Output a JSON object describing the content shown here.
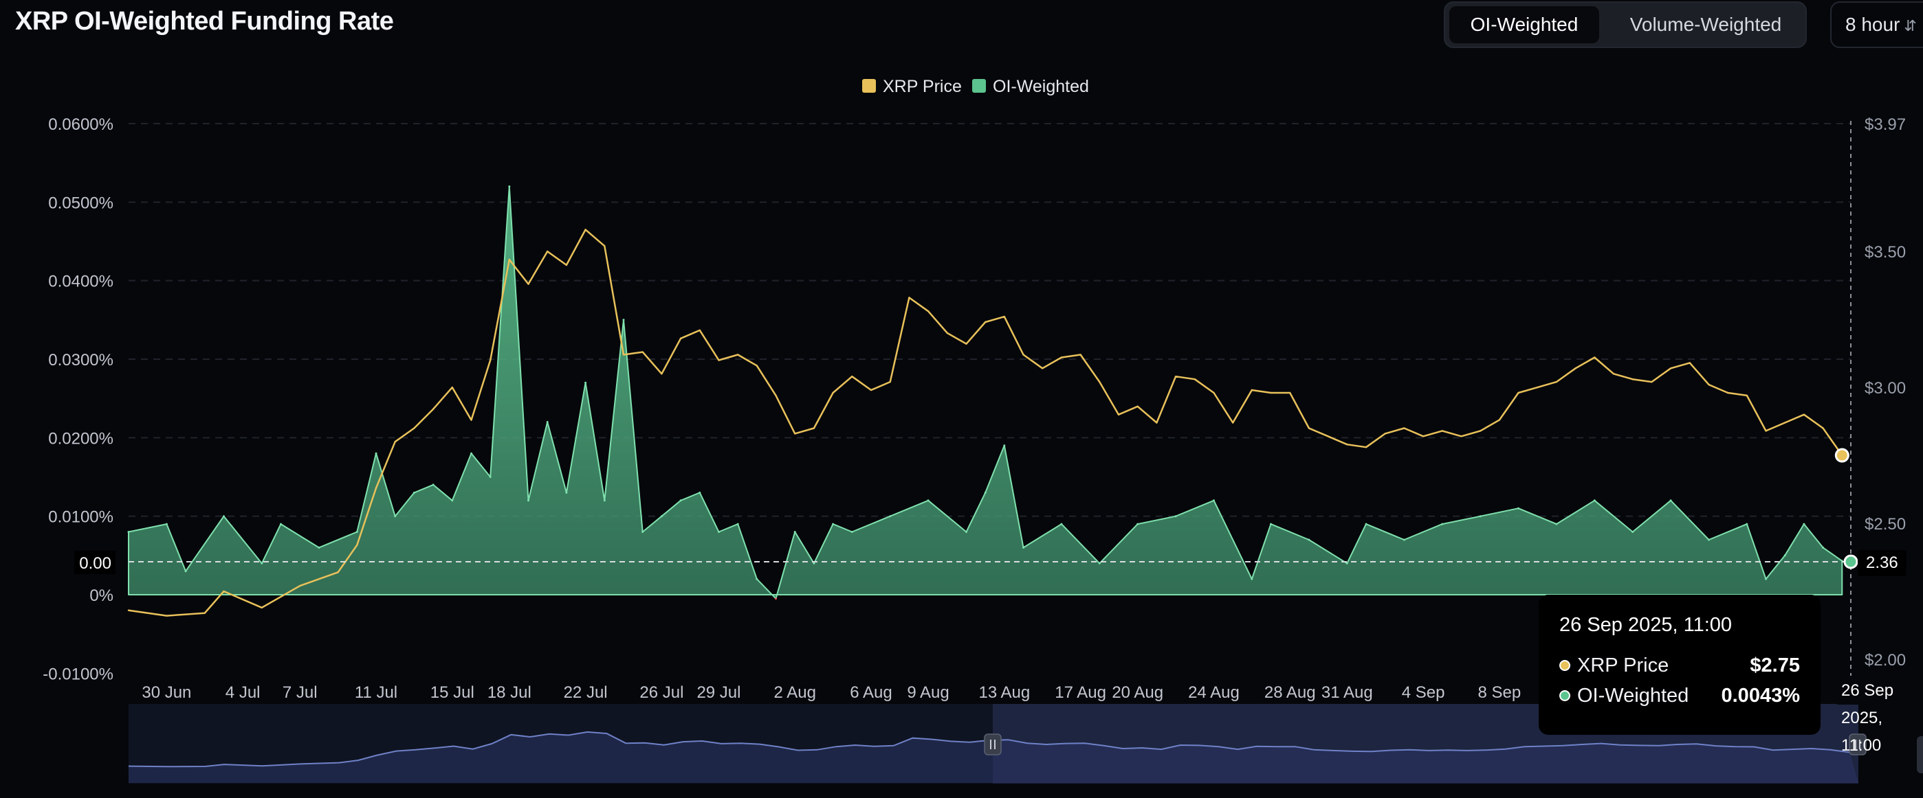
{
  "header": {
    "title": "XRP OI-Weighted Funding Rate",
    "toggle": [
      {
        "label": "OI-Weighted",
        "active": true
      },
      {
        "label": "Volume-Weighted",
        "active": false
      }
    ],
    "period": "8 hour"
  },
  "legend": [
    {
      "label": "XRP Price",
      "color": "#e8c15a"
    },
    {
      "label": "OI-Weighted",
      "color": "#5cc48e"
    }
  ],
  "chart_data": {
    "type": "area",
    "title": "XRP OI-Weighted Funding Rate",
    "x_ticks": [
      "30 Jun",
      "4 Jul",
      "7 Jul",
      "11 Jul",
      "15 Jul",
      "18 Jul",
      "22 Jul",
      "26 Jul",
      "29 Jul",
      "2 Aug",
      "6 Aug",
      "9 Aug",
      "13 Aug",
      "17 Aug",
      "20 Aug",
      "24 Aug",
      "28 Aug",
      "31 Aug",
      "4 Sep",
      "8 Sep"
    ],
    "y_left_ticks": [
      "0.0600%",
      "0.0500%",
      "0.0400%",
      "0.0300%",
      "0.0200%",
      "0.0100%",
      "0%",
      "-0.0100%"
    ],
    "y_left_range": [
      -0.0001,
      0.0006
    ],
    "y_right_ticks": [
      "$3.97",
      "$3.50",
      "$3.00",
      "$2.50",
      "$2.00"
    ],
    "y_right_range": [
      2.0,
      3.97
    ],
    "grid": true,
    "legend_position": "top-center",
    "series": [
      {
        "name": "XRP Price",
        "axis": "right",
        "color": "#e8c15a",
        "points": [
          [
            "2025-06-28",
            2.18
          ],
          [
            "2025-06-30",
            2.16
          ],
          [
            "2025-07-02",
            2.17
          ],
          [
            "2025-07-03",
            2.25
          ],
          [
            "2025-07-05",
            2.19
          ],
          [
            "2025-07-07",
            2.27
          ],
          [
            "2025-07-09",
            2.32
          ],
          [
            "2025-07-10",
            2.42
          ],
          [
            "2025-07-11",
            2.63
          ],
          [
            "2025-07-12",
            2.8
          ],
          [
            "2025-07-13",
            2.85
          ],
          [
            "2025-07-14",
            2.92
          ],
          [
            "2025-07-15",
            3.0
          ],
          [
            "2025-07-16",
            2.88
          ],
          [
            "2025-07-17",
            3.1
          ],
          [
            "2025-07-18",
            3.47
          ],
          [
            "2025-07-19",
            3.38
          ],
          [
            "2025-07-20",
            3.5
          ],
          [
            "2025-07-21",
            3.45
          ],
          [
            "2025-07-22",
            3.58
          ],
          [
            "2025-07-23",
            3.52
          ],
          [
            "2025-07-24",
            3.12
          ],
          [
            "2025-07-25",
            3.13
          ],
          [
            "2025-07-26",
            3.05
          ],
          [
            "2025-07-27",
            3.18
          ],
          [
            "2025-07-28",
            3.21
          ],
          [
            "2025-07-29",
            3.1
          ],
          [
            "2025-07-30",
            3.12
          ],
          [
            "2025-07-31",
            3.08
          ],
          [
            "2025-08-01",
            2.97
          ],
          [
            "2025-08-02",
            2.83
          ],
          [
            "2025-08-03",
            2.85
          ],
          [
            "2025-08-04",
            2.98
          ],
          [
            "2025-08-05",
            3.04
          ],
          [
            "2025-08-06",
            2.99
          ],
          [
            "2025-08-07",
            3.02
          ],
          [
            "2025-08-08",
            3.33
          ],
          [
            "2025-08-09",
            3.28
          ],
          [
            "2025-08-10",
            3.2
          ],
          [
            "2025-08-11",
            3.16
          ],
          [
            "2025-08-12",
            3.24
          ],
          [
            "2025-08-13",
            3.26
          ],
          [
            "2025-08-14",
            3.12
          ],
          [
            "2025-08-15",
            3.07
          ],
          [
            "2025-08-16",
            3.11
          ],
          [
            "2025-08-17",
            3.12
          ],
          [
            "2025-08-18",
            3.02
          ],
          [
            "2025-08-19",
            2.9
          ],
          [
            "2025-08-20",
            2.93
          ],
          [
            "2025-08-21",
            2.87
          ],
          [
            "2025-08-22",
            3.04
          ],
          [
            "2025-08-23",
            3.03
          ],
          [
            "2025-08-24",
            2.98
          ],
          [
            "2025-08-25",
            2.87
          ],
          [
            "2025-08-26",
            2.99
          ],
          [
            "2025-08-27",
            2.98
          ],
          [
            "2025-08-28",
            2.98
          ],
          [
            "2025-08-29",
            2.85
          ],
          [
            "2025-08-30",
            2.82
          ],
          [
            "2025-08-31",
            2.79
          ],
          [
            "2025-09-01",
            2.78
          ],
          [
            "2025-09-02",
            2.83
          ],
          [
            "2025-09-03",
            2.85
          ],
          [
            "2025-09-04",
            2.82
          ],
          [
            "2025-09-05",
            2.84
          ],
          [
            "2025-09-06",
            2.82
          ],
          [
            "2025-09-07",
            2.84
          ],
          [
            "2025-09-08",
            2.88
          ],
          [
            "2025-09-09",
            2.98
          ],
          [
            "2025-09-10",
            3.0
          ],
          [
            "2025-09-11",
            3.02
          ],
          [
            "2025-09-12",
            3.07
          ],
          [
            "2025-09-13",
            3.11
          ],
          [
            "2025-09-14",
            3.05
          ],
          [
            "2025-09-15",
            3.03
          ],
          [
            "2025-09-16",
            3.02
          ],
          [
            "2025-09-17",
            3.07
          ],
          [
            "2025-09-18",
            3.09
          ],
          [
            "2025-09-19",
            3.01
          ],
          [
            "2025-09-20",
            2.98
          ],
          [
            "2025-09-21",
            2.97
          ],
          [
            "2025-09-22",
            2.84
          ],
          [
            "2025-09-23",
            2.87
          ],
          [
            "2025-09-24",
            2.9
          ],
          [
            "2025-09-25",
            2.85
          ],
          [
            "2025-09-26",
            2.75
          ]
        ]
      },
      {
        "name": "OI-Weighted",
        "axis": "left",
        "color": "#5cc48e",
        "points": [
          [
            "2025-06-28",
            8e-05
          ],
          [
            "2025-06-30",
            9e-05
          ],
          [
            "2025-07-01",
            3e-05
          ],
          [
            "2025-07-03",
            0.0001
          ],
          [
            "2025-07-05",
            4e-05
          ],
          [
            "2025-07-06",
            9e-05
          ],
          [
            "2025-07-08",
            6e-05
          ],
          [
            "2025-07-10",
            8e-05
          ],
          [
            "2025-07-11",
            0.00018
          ],
          [
            "2025-07-12",
            0.0001
          ],
          [
            "2025-07-13",
            0.00013
          ],
          [
            "2025-07-14",
            0.00014
          ],
          [
            "2025-07-15",
            0.00012
          ],
          [
            "2025-07-16",
            0.00018
          ],
          [
            "2025-07-17",
            0.00015
          ],
          [
            "2025-07-18",
            0.00052
          ],
          [
            "2025-07-19",
            0.00012
          ],
          [
            "2025-07-20",
            0.00022
          ],
          [
            "2025-07-21",
            0.00013
          ],
          [
            "2025-07-22",
            0.00027
          ],
          [
            "2025-07-23",
            0.00012
          ],
          [
            "2025-07-24",
            0.00035
          ],
          [
            "2025-07-25",
            8e-05
          ],
          [
            "2025-07-26",
            0.0001
          ],
          [
            "2025-07-27",
            0.00012
          ],
          [
            "2025-07-28",
            0.00013
          ],
          [
            "2025-07-29",
            8e-05
          ],
          [
            "2025-07-30",
            9e-05
          ],
          [
            "2025-07-31",
            2e-05
          ],
          [
            "2025-08-01",
            -5e-06
          ],
          [
            "2025-08-02",
            8e-05
          ],
          [
            "2025-08-03",
            4e-05
          ],
          [
            "2025-08-04",
            9e-05
          ],
          [
            "2025-08-05",
            8e-05
          ],
          [
            "2025-08-07",
            0.0001
          ],
          [
            "2025-08-09",
            0.00012
          ],
          [
            "2025-08-11",
            8e-05
          ],
          [
            "2025-08-12",
            0.00013
          ],
          [
            "2025-08-13",
            0.00019
          ],
          [
            "2025-08-14",
            6e-05
          ],
          [
            "2025-08-16",
            9e-05
          ],
          [
            "2025-08-18",
            4e-05
          ],
          [
            "2025-08-20",
            9e-05
          ],
          [
            "2025-08-22",
            0.0001
          ],
          [
            "2025-08-24",
            0.00012
          ],
          [
            "2025-08-26",
            2e-05
          ],
          [
            "2025-08-27",
            9e-05
          ],
          [
            "2025-08-29",
            7e-05
          ],
          [
            "2025-08-31",
            4e-05
          ],
          [
            "2025-09-01",
            9e-05
          ],
          [
            "2025-09-03",
            7e-05
          ],
          [
            "2025-09-05",
            9e-05
          ],
          [
            "2025-09-07",
            0.0001
          ],
          [
            "2025-09-09",
            0.00011
          ],
          [
            "2025-09-11",
            9e-05
          ],
          [
            "2025-09-13",
            0.00012
          ],
          [
            "2025-09-15",
            8e-05
          ],
          [
            "2025-09-17",
            0.00012
          ],
          [
            "2025-09-19",
            7e-05
          ],
          [
            "2025-09-21",
            9e-05
          ],
          [
            "2025-09-22",
            2e-05
          ],
          [
            "2025-09-23",
            5e-05
          ],
          [
            "2025-09-24",
            9e-05
          ],
          [
            "2025-09-25",
            6e-05
          ],
          [
            "2025-09-26",
            4.3e-05
          ]
        ]
      }
    ]
  },
  "crosshair": {
    "left_label": "0.00",
    "right_label": "2.36",
    "x_label": "26 Sep 2025, 11:00"
  },
  "tooltip": {
    "time": "26 Sep 2025, 11:00",
    "rows": [
      {
        "label": "XRP Price",
        "value": "$2.75",
        "color": "#e8c15a"
      },
      {
        "label": "OI-Weighted",
        "value": "0.0043%",
        "color": "#5cc48e"
      }
    ]
  }
}
